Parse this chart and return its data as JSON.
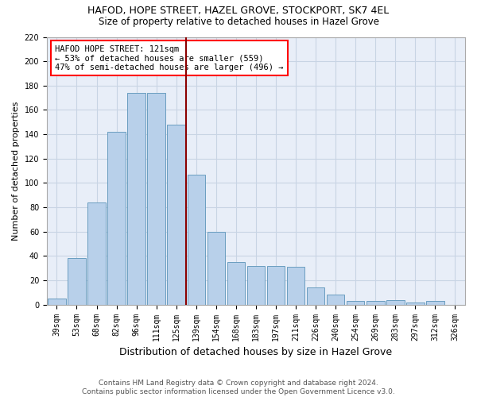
{
  "title_line1": "HAFOD, HOPE STREET, HAZEL GROVE, STOCKPORT, SK7 4EL",
  "title_line2": "Size of property relative to detached houses in Hazel Grove",
  "xlabel": "Distribution of detached houses by size in Hazel Grove",
  "ylabel": "Number of detached properties",
  "categories": [
    "39sqm",
    "53sqm",
    "68sqm",
    "82sqm",
    "96sqm",
    "111sqm",
    "125sqm",
    "139sqm",
    "154sqm",
    "168sqm",
    "183sqm",
    "197sqm",
    "211sqm",
    "226sqm",
    "240sqm",
    "254sqm",
    "269sqm",
    "283sqm",
    "297sqm",
    "312sqm",
    "326sqm"
  ],
  "values": [
    5,
    38,
    84,
    142,
    174,
    174,
    148,
    107,
    60,
    35,
    32,
    32,
    31,
    14,
    8,
    3,
    3,
    4,
    2,
    3,
    0
  ],
  "bar_color": "#b8d0ea",
  "bar_edge_color": "#6a9ec0",
  "grid_color": "#c8d4e4",
  "background_color": "#e8eef8",
  "annotation_line1": "HAFOD HOPE STREET: 121sqm",
  "annotation_line2": "← 53% of detached houses are smaller (559)",
  "annotation_line3": "47% of semi-detached houses are larger (496) →",
  "vline_x": 6.5,
  "vline_color": "#8b0000",
  "ylim": [
    0,
    220
  ],
  "yticks": [
    0,
    20,
    40,
    60,
    80,
    100,
    120,
    140,
    160,
    180,
    200,
    220
  ],
  "footer_line1": "Contains HM Land Registry data © Crown copyright and database right 2024.",
  "footer_line2": "Contains public sector information licensed under the Open Government Licence v3.0.",
  "title_fontsize": 9,
  "subtitle_fontsize": 8.5,
  "tick_fontsize": 7,
  "ylabel_fontsize": 8,
  "xlabel_fontsize": 9,
  "annotation_fontsize": 7.5,
  "footer_fontsize": 6.5
}
